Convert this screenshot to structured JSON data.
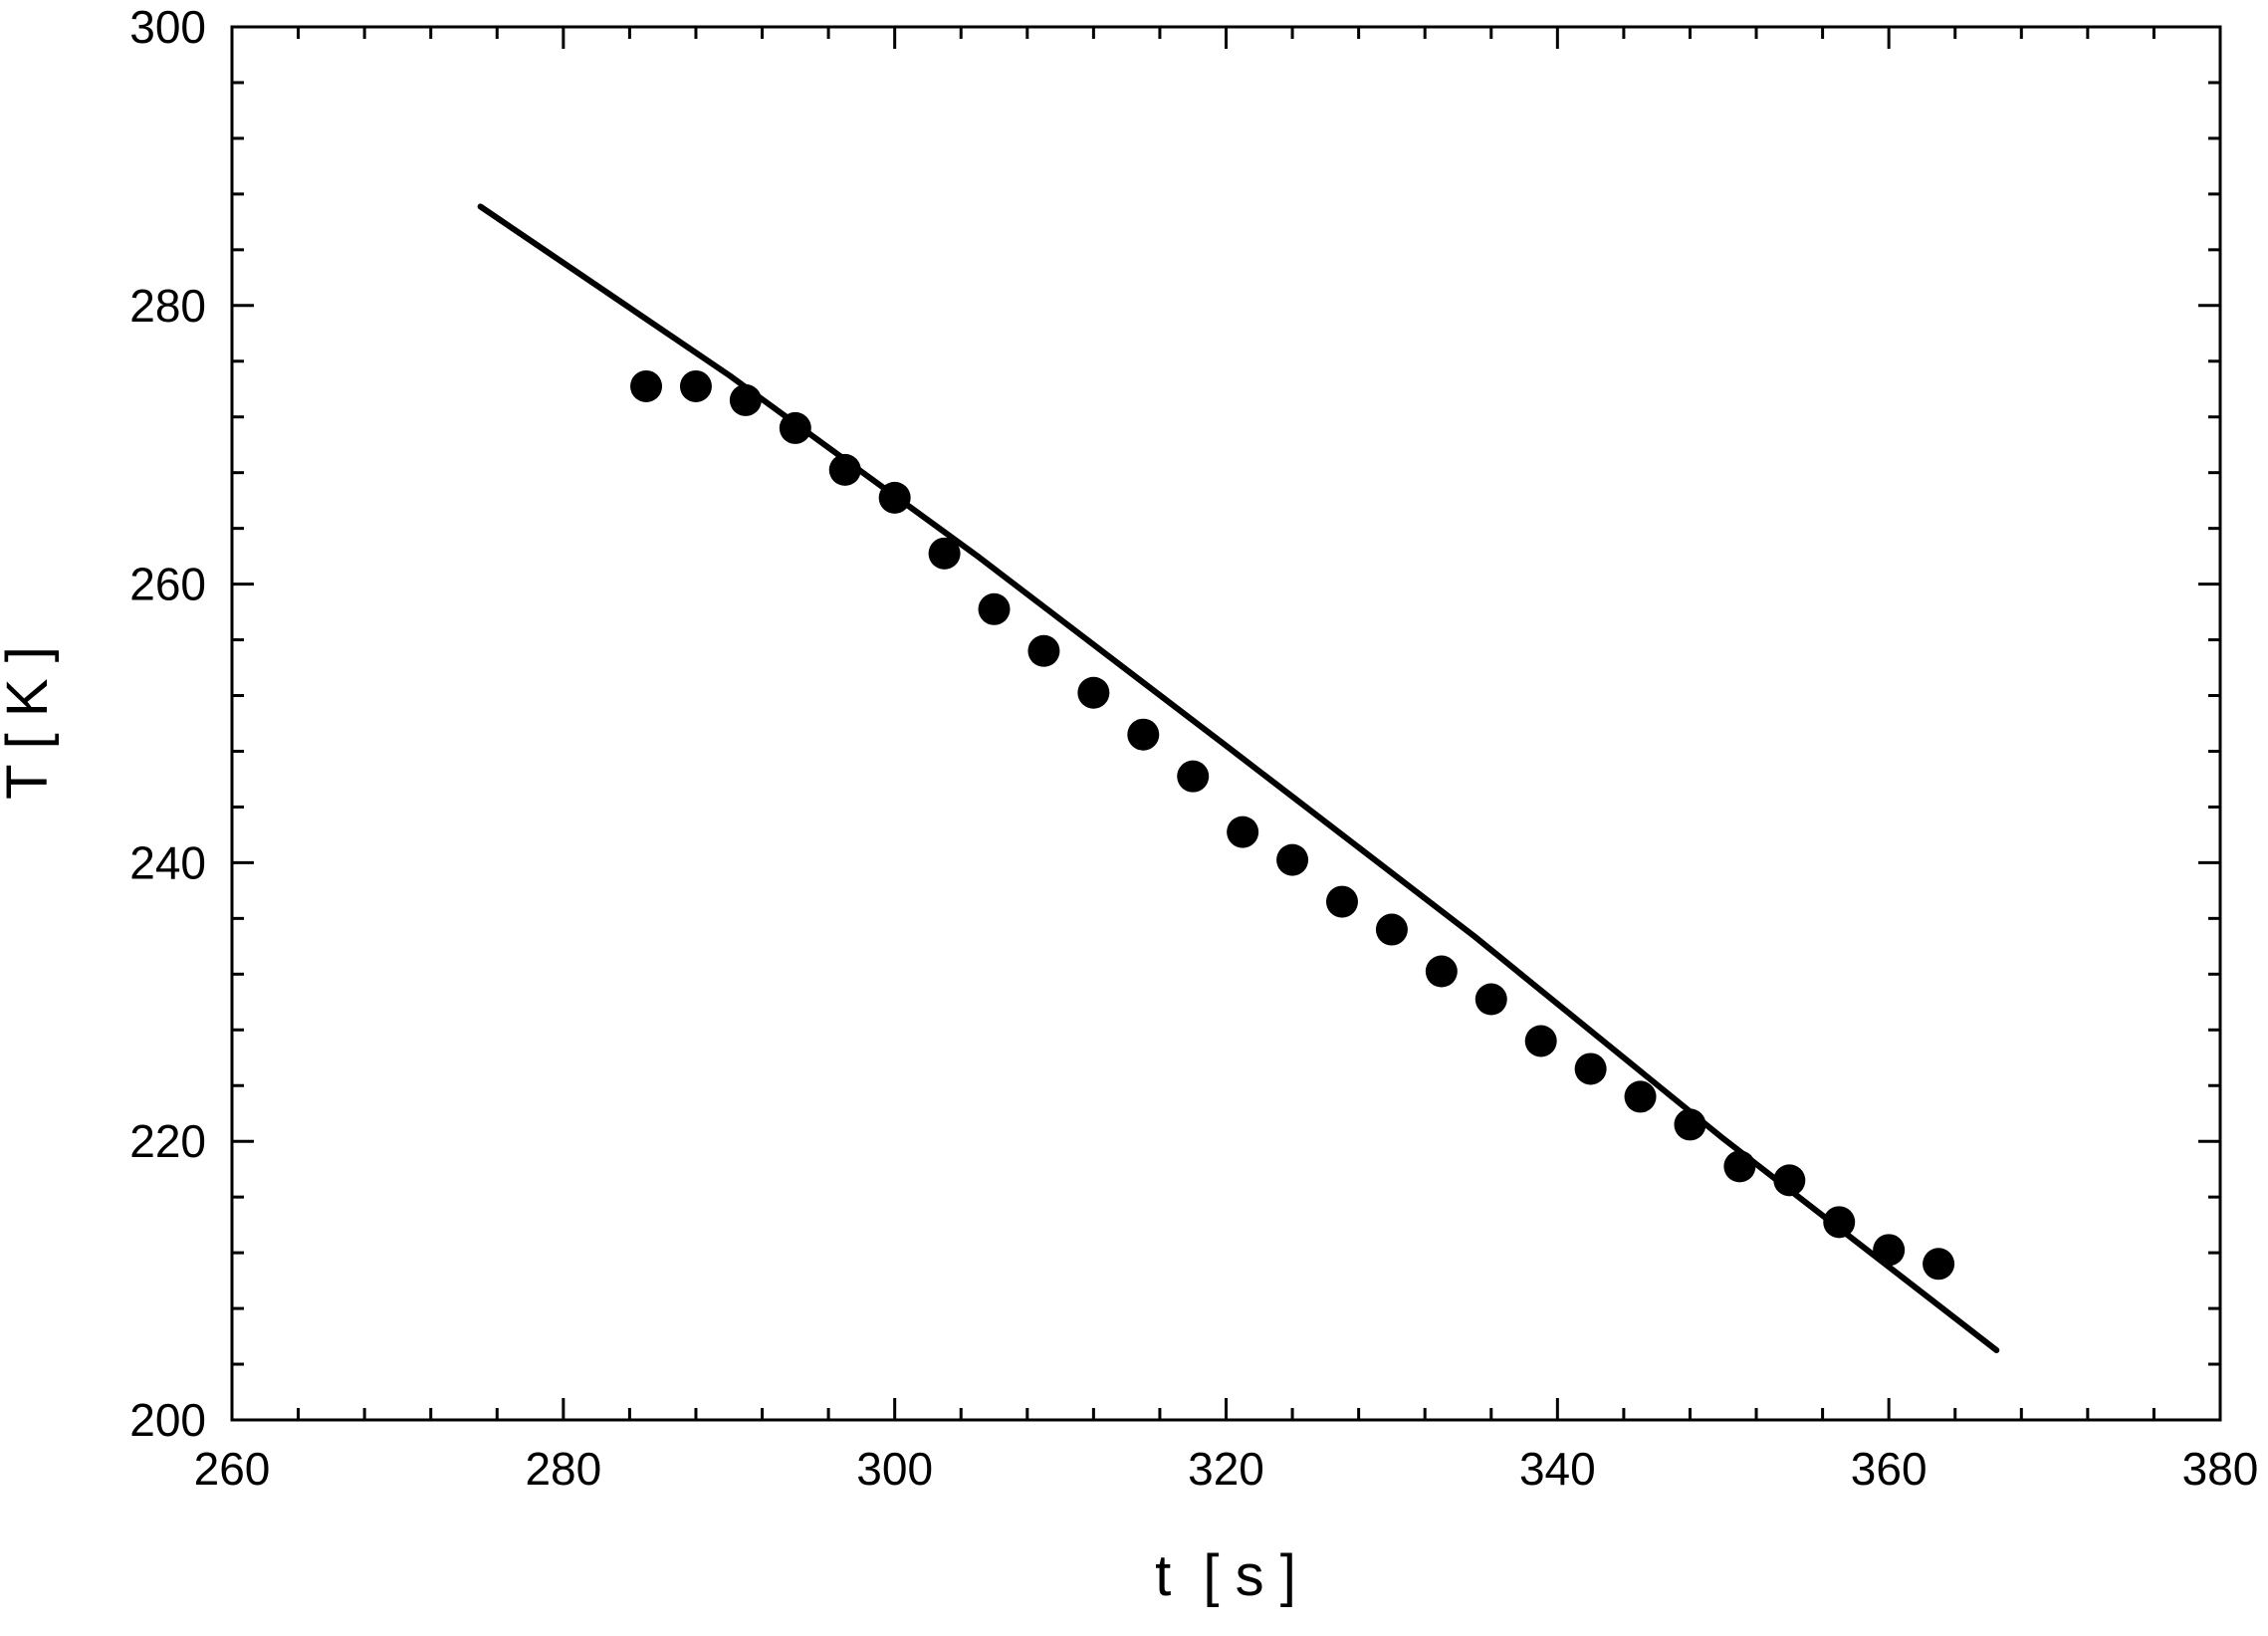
{
  "chart_data": {
    "type": "scatter",
    "title": "",
    "xlabel": "t  [ s ]",
    "ylabel": "T [ K ]",
    "xlim": [
      260,
      380
    ],
    "ylim": [
      200,
      300
    ],
    "x_ticks": [
      260,
      280,
      300,
      320,
      340,
      360,
      380
    ],
    "y_ticks": [
      200,
      220,
      240,
      260,
      280,
      300
    ],
    "x_tick_labels": [
      "260",
      "280",
      "300",
      "320",
      "340",
      "360",
      "380"
    ],
    "y_tick_labels": [
      "200",
      "220",
      "240",
      "260",
      "280",
      "300"
    ],
    "x_minor_step": 4,
    "y_minor_step": 4,
    "grid": false,
    "legend": "none",
    "series": [
      {
        "kind": "points",
        "color": "#000000",
        "x": [
          285,
          288,
          291,
          294,
          297,
          300,
          303,
          306,
          309,
          312,
          315,
          318,
          321,
          324,
          327,
          330,
          333,
          336,
          339,
          342,
          345,
          348,
          351,
          354,
          357,
          360,
          363
        ],
        "y": [
          274.2,
          274.2,
          273.2,
          271.2,
          268.2,
          266.2,
          262.2,
          258.2,
          255.2,
          252.2,
          249.2,
          246.2,
          242.2,
          240.2,
          237.2,
          235.2,
          232.2,
          230.2,
          227.2,
          225.2,
          223.2,
          221.2,
          218.2,
          217.2,
          214.2,
          212.2,
          211.2
        ]
      },
      {
        "kind": "line",
        "color": "#000000",
        "x": [
          275,
          290,
          305,
          320,
          335,
          350,
          366.5
        ],
        "y": [
          287.1,
          275.0,
          262.0,
          248.4,
          234.7,
          220.2,
          205.0
        ]
      }
    ]
  }
}
